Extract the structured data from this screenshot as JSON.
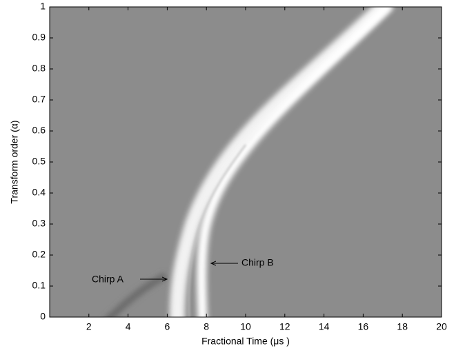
{
  "chart_data": {
    "type": "heatmap",
    "x_label": "Fractional Time (μs )",
    "y_label": "Transform order (α)",
    "xlim": [
      0,
      20
    ],
    "xticks": [
      2,
      4,
      6,
      8,
      10,
      12,
      14,
      16,
      18,
      20
    ],
    "ylim": [
      0,
      1
    ],
    "yticks": [
      0,
      0.1,
      0.2,
      0.3,
      0.4,
      0.5,
      0.6,
      0.7,
      0.8,
      0.9,
      1
    ],
    "annotations": [
      "Chirp A",
      "Chirp B"
    ]
  }
}
